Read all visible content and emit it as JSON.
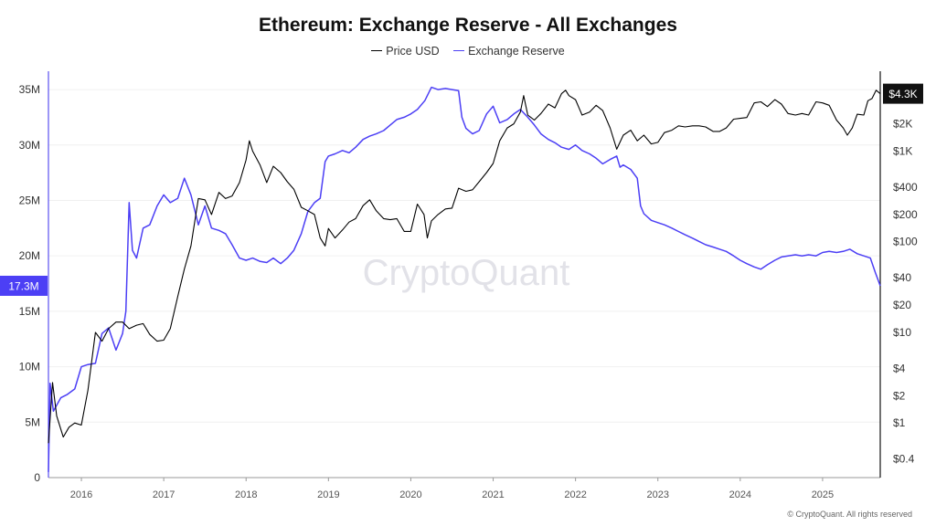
{
  "chart_data": {
    "type": "line",
    "title": "Ethereum: Exchange Reserve - All Exchanges",
    "watermark": "CryptoQuant",
    "copyright": "© CryptoQuant. All rights reserved",
    "x_ticks": [
      "2016",
      "2017",
      "2018",
      "2019",
      "2020",
      "2021",
      "2022",
      "2023",
      "2024",
      "2025"
    ],
    "x_range": [
      2015.6,
      2025.7
    ],
    "left_axis": {
      "range": [
        0,
        35500000
      ],
      "ticks": [
        {
          "label": "0",
          "value": 0
        },
        {
          "label": "5M",
          "value": 5000000
        },
        {
          "label": "10M",
          "value": 10000000
        },
        {
          "label": "15M",
          "value": 15000000
        },
        {
          "label": "20M",
          "value": 20000000
        },
        {
          "label": "25M",
          "value": 25000000
        },
        {
          "label": "30M",
          "value": 30000000
        },
        {
          "label": "35M",
          "value": 35000000
        }
      ],
      "current_label": "17.3M",
      "current_value": 17300000
    },
    "right_axis": {
      "scale": "log",
      "range": [
        0.25,
        5500
      ],
      "ticks": [
        {
          "label": "$0.4",
          "value": 0.4
        },
        {
          "label": "$1",
          "value": 1
        },
        {
          "label": "$2",
          "value": 2
        },
        {
          "label": "$4",
          "value": 4
        },
        {
          "label": "$10",
          "value": 10
        },
        {
          "label": "$20",
          "value": 20
        },
        {
          "label": "$40",
          "value": 40
        },
        {
          "label": "$100",
          "value": 100
        },
        {
          "label": "$200",
          "value": 200
        },
        {
          "label": "$400",
          "value": 400
        },
        {
          "label": "$1K",
          "value": 1000
        },
        {
          "label": "$2K",
          "value": 2000
        }
      ],
      "current_label": "$4.3K",
      "current_value": 4300
    },
    "series": [
      {
        "name": "Price USD",
        "color": "#000000",
        "axis": "right",
        "points": [
          [
            2015.6,
            0.6
          ],
          [
            2015.65,
            2.8
          ],
          [
            2015.7,
            1.2
          ],
          [
            2015.78,
            0.7
          ],
          [
            2015.85,
            0.9
          ],
          [
            2015.92,
            1.0
          ],
          [
            2016.0,
            0.95
          ],
          [
            2016.08,
            2.3
          ],
          [
            2016.17,
            10
          ],
          [
            2016.25,
            8
          ],
          [
            2016.33,
            11
          ],
          [
            2016.42,
            13
          ],
          [
            2016.5,
            13
          ],
          [
            2016.58,
            11
          ],
          [
            2016.67,
            12
          ],
          [
            2016.75,
            12.5
          ],
          [
            2016.83,
            9.5
          ],
          [
            2016.92,
            8
          ],
          [
            2017.0,
            8.2
          ],
          [
            2017.08,
            11
          ],
          [
            2017.17,
            25
          ],
          [
            2017.25,
            50
          ],
          [
            2017.33,
            90
          ],
          [
            2017.42,
            300
          ],
          [
            2017.5,
            290
          ],
          [
            2017.58,
            200
          ],
          [
            2017.67,
            350
          ],
          [
            2017.75,
            300
          ],
          [
            2017.83,
            320
          ],
          [
            2017.92,
            450
          ],
          [
            2018.0,
            800
          ],
          [
            2018.04,
            1300
          ],
          [
            2018.08,
            1000
          ],
          [
            2018.17,
            700
          ],
          [
            2018.25,
            450
          ],
          [
            2018.33,
            680
          ],
          [
            2018.42,
            580
          ],
          [
            2018.5,
            460
          ],
          [
            2018.58,
            380
          ],
          [
            2018.67,
            240
          ],
          [
            2018.75,
            220
          ],
          [
            2018.83,
            200
          ],
          [
            2018.9,
            110
          ],
          [
            2018.96,
            90
          ],
          [
            2019.0,
            140
          ],
          [
            2019.08,
            110
          ],
          [
            2019.17,
            135
          ],
          [
            2019.25,
            165
          ],
          [
            2019.33,
            180
          ],
          [
            2019.42,
            250
          ],
          [
            2019.5,
            290
          ],
          [
            2019.58,
            220
          ],
          [
            2019.67,
            180
          ],
          [
            2019.75,
            175
          ],
          [
            2019.83,
            180
          ],
          [
            2019.92,
            130
          ],
          [
            2020.0,
            130
          ],
          [
            2020.08,
            260
          ],
          [
            2020.16,
            200
          ],
          [
            2020.2,
            110
          ],
          [
            2020.25,
            170
          ],
          [
            2020.33,
            200
          ],
          [
            2020.42,
            230
          ],
          [
            2020.5,
            235
          ],
          [
            2020.58,
            390
          ],
          [
            2020.67,
            360
          ],
          [
            2020.75,
            375
          ],
          [
            2020.83,
            460
          ],
          [
            2020.92,
            580
          ],
          [
            2021.0,
            730
          ],
          [
            2021.08,
            1300
          ],
          [
            2021.17,
            1800
          ],
          [
            2021.25,
            2000
          ],
          [
            2021.33,
            2700
          ],
          [
            2021.37,
            4100
          ],
          [
            2021.42,
            2500
          ],
          [
            2021.5,
            2200
          ],
          [
            2021.58,
            2600
          ],
          [
            2021.67,
            3300
          ],
          [
            2021.75,
            3000
          ],
          [
            2021.83,
            4300
          ],
          [
            2021.88,
            4700
          ],
          [
            2021.92,
            4100
          ],
          [
            2022.0,
            3700
          ],
          [
            2022.08,
            2500
          ],
          [
            2022.17,
            2700
          ],
          [
            2022.25,
            3200
          ],
          [
            2022.33,
            2800
          ],
          [
            2022.42,
            1800
          ],
          [
            2022.5,
            1050
          ],
          [
            2022.58,
            1500
          ],
          [
            2022.67,
            1700
          ],
          [
            2022.75,
            1300
          ],
          [
            2022.83,
            1500
          ],
          [
            2022.92,
            1200
          ],
          [
            2023.0,
            1250
          ],
          [
            2023.08,
            1600
          ],
          [
            2023.17,
            1700
          ],
          [
            2023.25,
            1900
          ],
          [
            2023.33,
            1850
          ],
          [
            2023.42,
            1900
          ],
          [
            2023.5,
            1900
          ],
          [
            2023.58,
            1850
          ],
          [
            2023.67,
            1650
          ],
          [
            2023.75,
            1650
          ],
          [
            2023.83,
            1800
          ],
          [
            2023.92,
            2250
          ],
          [
            2024.0,
            2300
          ],
          [
            2024.08,
            2350
          ],
          [
            2024.17,
            3400
          ],
          [
            2024.25,
            3500
          ],
          [
            2024.33,
            3100
          ],
          [
            2024.42,
            3700
          ],
          [
            2024.5,
            3300
          ],
          [
            2024.58,
            2600
          ],
          [
            2024.67,
            2500
          ],
          [
            2024.75,
            2600
          ],
          [
            2024.83,
            2500
          ],
          [
            2024.92,
            3500
          ],
          [
            2025.0,
            3400
          ],
          [
            2025.08,
            3200
          ],
          [
            2025.17,
            2200
          ],
          [
            2025.25,
            1800
          ],
          [
            2025.3,
            1500
          ],
          [
            2025.36,
            1800
          ],
          [
            2025.42,
            2550
          ],
          [
            2025.5,
            2500
          ],
          [
            2025.55,
            3600
          ],
          [
            2025.6,
            3800
          ],
          [
            2025.65,
            4700
          ],
          [
            2025.7,
            4300
          ]
        ]
      },
      {
        "name": "Exchange Reserve",
        "color": "#4c3ff5",
        "axis": "left",
        "points": [
          [
            2015.6,
            0.5
          ],
          [
            2015.62,
            8.5
          ],
          [
            2015.66,
            6.0
          ],
          [
            2015.75,
            7.2
          ],
          [
            2015.83,
            7.5
          ],
          [
            2015.92,
            8.0
          ],
          [
            2016.0,
            10.0
          ],
          [
            2016.08,
            10.2
          ],
          [
            2016.17,
            10.3
          ],
          [
            2016.25,
            13.0
          ],
          [
            2016.33,
            13.5
          ],
          [
            2016.42,
            11.5
          ],
          [
            2016.5,
            13.0
          ],
          [
            2016.54,
            15.0
          ],
          [
            2016.58,
            24.8
          ],
          [
            2016.62,
            20.5
          ],
          [
            2016.67,
            19.8
          ],
          [
            2016.75,
            22.5
          ],
          [
            2016.83,
            22.8
          ],
          [
            2016.92,
            24.5
          ],
          [
            2017.0,
            25.5
          ],
          [
            2017.08,
            24.8
          ],
          [
            2017.17,
            25.2
          ],
          [
            2017.25,
            27.0
          ],
          [
            2017.33,
            25.5
          ],
          [
            2017.42,
            22.8
          ],
          [
            2017.5,
            24.5
          ],
          [
            2017.58,
            22.5
          ],
          [
            2017.67,
            22.3
          ],
          [
            2017.75,
            22.0
          ],
          [
            2017.83,
            21.0
          ],
          [
            2017.92,
            19.8
          ],
          [
            2018.0,
            19.6
          ],
          [
            2018.08,
            19.8
          ],
          [
            2018.17,
            19.5
          ],
          [
            2018.25,
            19.4
          ],
          [
            2018.33,
            19.8
          ],
          [
            2018.42,
            19.3
          ],
          [
            2018.5,
            19.8
          ],
          [
            2018.58,
            20.5
          ],
          [
            2018.67,
            22.0
          ],
          [
            2018.75,
            24.0
          ],
          [
            2018.83,
            24.8
          ],
          [
            2018.9,
            25.2
          ],
          [
            2018.96,
            28.5
          ],
          [
            2019.0,
            29.0
          ],
          [
            2019.08,
            29.2
          ],
          [
            2019.17,
            29.5
          ],
          [
            2019.25,
            29.3
          ],
          [
            2019.33,
            29.8
          ],
          [
            2019.42,
            30.5
          ],
          [
            2019.5,
            30.8
          ],
          [
            2019.58,
            31.0
          ],
          [
            2019.67,
            31.3
          ],
          [
            2019.75,
            31.8
          ],
          [
            2019.83,
            32.3
          ],
          [
            2019.92,
            32.5
          ],
          [
            2020.0,
            32.8
          ],
          [
            2020.08,
            33.2
          ],
          [
            2020.17,
            34.0
          ],
          [
            2020.25,
            35.2
          ],
          [
            2020.33,
            35.0
          ],
          [
            2020.42,
            35.1
          ],
          [
            2020.5,
            35.0
          ],
          [
            2020.58,
            34.9
          ],
          [
            2020.62,
            32.5
          ],
          [
            2020.67,
            31.5
          ],
          [
            2020.75,
            31.0
          ],
          [
            2020.83,
            31.3
          ],
          [
            2020.92,
            32.8
          ],
          [
            2021.0,
            33.5
          ],
          [
            2021.08,
            32.0
          ],
          [
            2021.17,
            32.3
          ],
          [
            2021.25,
            32.8
          ],
          [
            2021.33,
            33.2
          ],
          [
            2021.42,
            32.5
          ],
          [
            2021.5,
            31.8
          ],
          [
            2021.58,
            31.0
          ],
          [
            2021.67,
            30.5
          ],
          [
            2021.75,
            30.2
          ],
          [
            2021.83,
            29.8
          ],
          [
            2021.92,
            29.6
          ],
          [
            2022.0,
            30.0
          ],
          [
            2022.08,
            29.5
          ],
          [
            2022.17,
            29.2
          ],
          [
            2022.25,
            28.8
          ],
          [
            2022.33,
            28.3
          ],
          [
            2022.42,
            28.7
          ],
          [
            2022.5,
            29.0
          ],
          [
            2022.54,
            28.0
          ],
          [
            2022.58,
            28.2
          ],
          [
            2022.67,
            27.8
          ],
          [
            2022.75,
            27.0
          ],
          [
            2022.79,
            24.5
          ],
          [
            2022.83,
            23.8
          ],
          [
            2022.92,
            23.2
          ],
          [
            2023.0,
            23.0
          ],
          [
            2023.08,
            22.8
          ],
          [
            2023.17,
            22.5
          ],
          [
            2023.25,
            22.2
          ],
          [
            2023.33,
            21.9
          ],
          [
            2023.42,
            21.6
          ],
          [
            2023.5,
            21.3
          ],
          [
            2023.58,
            21.0
          ],
          [
            2023.67,
            20.8
          ],
          [
            2023.75,
            20.6
          ],
          [
            2023.83,
            20.4
          ],
          [
            2023.92,
            20.0
          ],
          [
            2024.0,
            19.6
          ],
          [
            2024.08,
            19.3
          ],
          [
            2024.17,
            19.0
          ],
          [
            2024.25,
            18.8
          ],
          [
            2024.33,
            19.2
          ],
          [
            2024.42,
            19.6
          ],
          [
            2024.5,
            19.9
          ],
          [
            2024.58,
            20.0
          ],
          [
            2024.67,
            20.1
          ],
          [
            2024.75,
            20.0
          ],
          [
            2024.83,
            20.1
          ],
          [
            2024.92,
            20.0
          ],
          [
            2025.0,
            20.3
          ],
          [
            2025.08,
            20.4
          ],
          [
            2025.17,
            20.3
          ],
          [
            2025.25,
            20.4
          ],
          [
            2025.33,
            20.6
          ],
          [
            2025.42,
            20.2
          ],
          [
            2025.5,
            20.0
          ],
          [
            2025.58,
            19.8
          ],
          [
            2025.64,
            18.5
          ],
          [
            2025.7,
            17.3
          ]
        ]
      }
    ]
  }
}
